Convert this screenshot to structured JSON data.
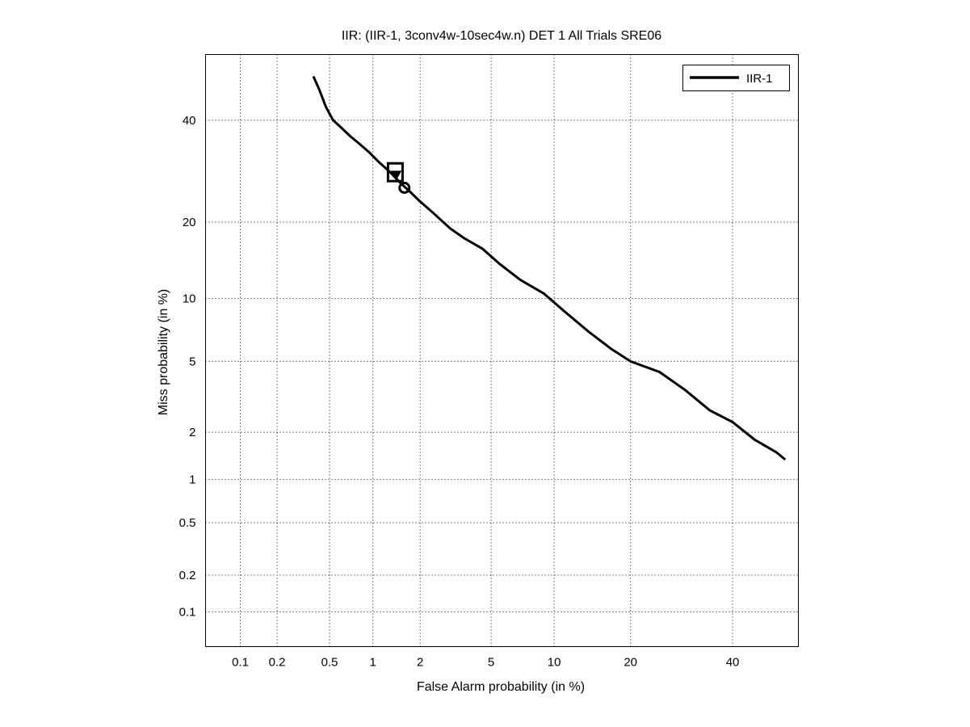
{
  "chart_data": {
    "type": "line",
    "title": "IIR: (IIR-1, 3conv4w-10sec4w.n) DET 1 All Trials SRE06",
    "xlabel": "False Alarm probability (in %)",
    "ylabel": "Miss probability (in %)",
    "x_scale": "normal-deviate",
    "y_scale": "normal-deviate",
    "xlim": [
      0.05,
      55
    ],
    "ylim": [
      0.05,
      55
    ],
    "x_ticks": [
      0.1,
      0.2,
      0.5,
      1,
      2,
      5,
      10,
      20,
      40
    ],
    "x_tick_labels": [
      "0.1",
      "0.2",
      "0.5",
      "1",
      "2",
      "5",
      "10",
      "20",
      "40"
    ],
    "y_ticks": [
      0.1,
      0.2,
      0.5,
      1,
      2,
      5,
      10,
      20,
      40
    ],
    "y_tick_labels": [
      "0.1",
      "0.2",
      "0.5",
      "1",
      "2",
      "5",
      "10",
      "20",
      "40"
    ],
    "grid": true,
    "legend_position": "top-right",
    "series": [
      {
        "name": "IIR-1",
        "color": "#000000",
        "x": [
          0.38,
          0.42,
          0.47,
          0.53,
          0.6,
          0.7,
          0.8,
          0.95,
          1.1,
          1.3,
          1.5,
          1.7,
          2.0,
          2.4,
          3.0,
          3.6,
          4.5,
          5.5,
          7.0,
          9.0,
          11.0,
          14.0,
          17.0,
          20.0,
          25.0,
          30.0,
          35.0,
          40.0,
          45.0,
          50.0,
          52.0
        ],
        "y": [
          50.0,
          47.0,
          43.0,
          40.0,
          38.5,
          36.5,
          35.0,
          33.0,
          31.0,
          29.0,
          27.0,
          25.5,
          23.5,
          21.5,
          19.0,
          17.5,
          16.0,
          14.0,
          12.0,
          10.5,
          8.8,
          7.0,
          5.8,
          5.0,
          4.4,
          3.5,
          2.7,
          2.3,
          1.8,
          1.5,
          1.35
        ]
      }
    ],
    "markers": [
      {
        "shape": "square",
        "x": 1.4,
        "y": 29.0
      },
      {
        "shape": "triangle-down",
        "x": 1.42,
        "y": 28.5
      },
      {
        "shape": "circle",
        "x": 1.6,
        "y": 26.0
      }
    ]
  }
}
